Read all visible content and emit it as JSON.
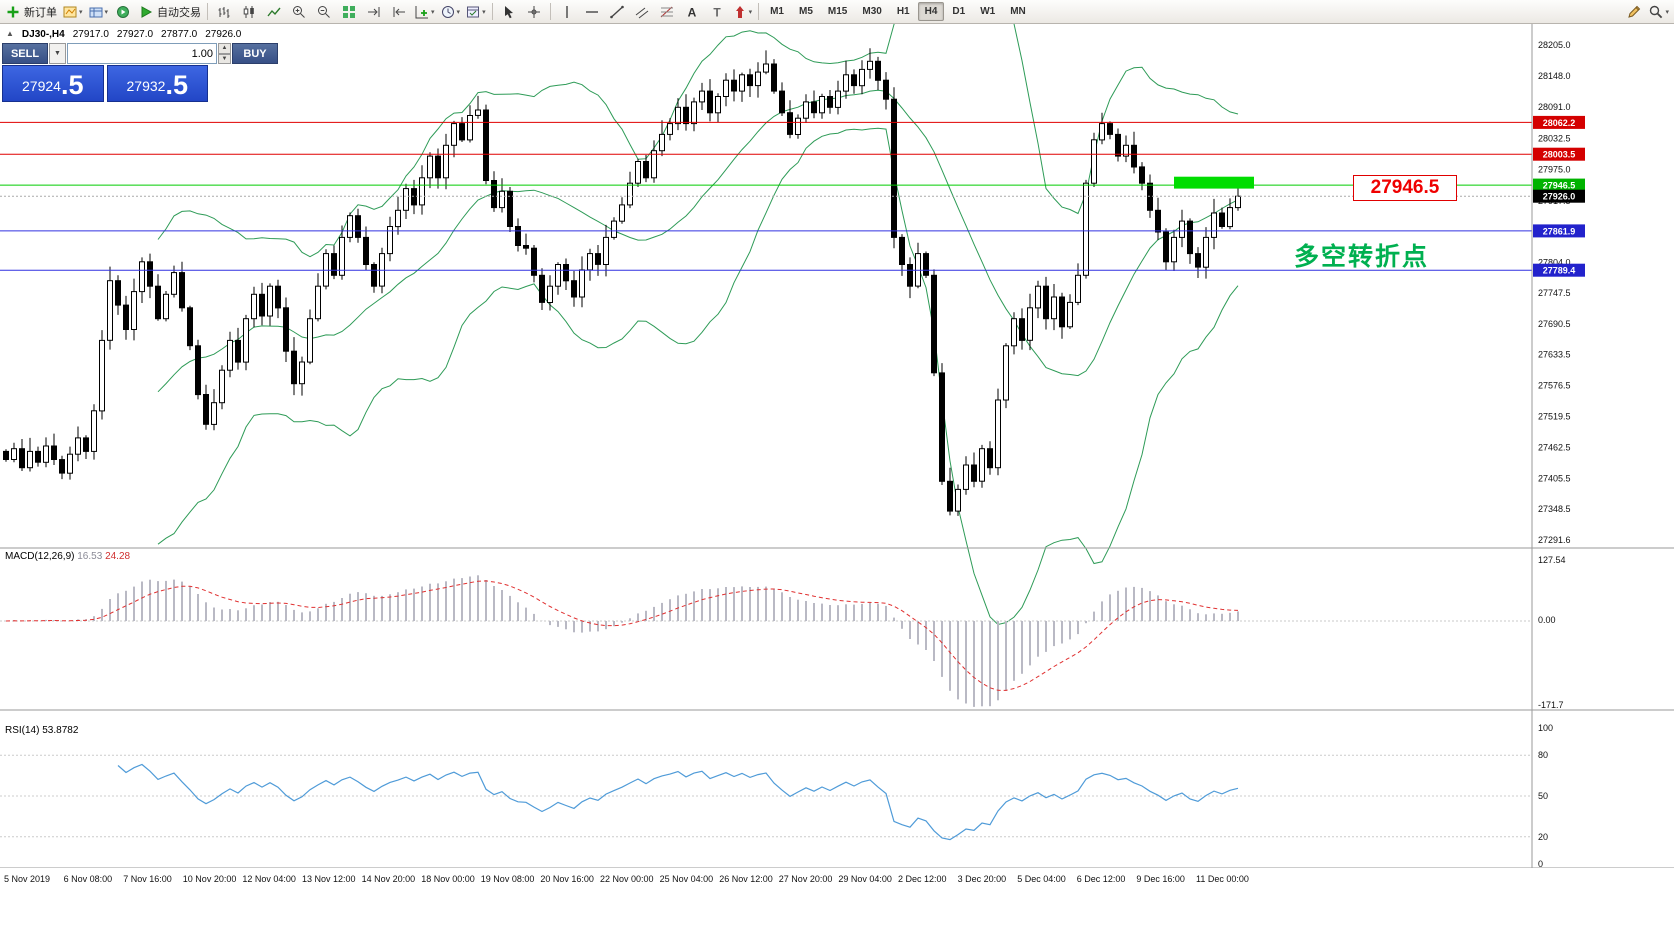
{
  "toolbar": {
    "new_order": "新订单",
    "auto_trading": "自动交易",
    "timeframes": [
      "M1",
      "M5",
      "M15",
      "M30",
      "H1",
      "H4",
      "D1",
      "W1",
      "MN"
    ],
    "active_timeframe": "H4"
  },
  "trade_panel": {
    "sell_label": "SELL",
    "buy_label": "BUY",
    "volume": "1.00",
    "sell_price_main": "27924",
    "sell_price_frac": ".5",
    "buy_price_main": "27932",
    "buy_price_frac": ".5"
  },
  "chart": {
    "symbol_period": "DJ30-,H4",
    "open": "27917.0",
    "high": "27927.0",
    "low": "27877.0",
    "close": "27926.0"
  },
  "price_axis": {
    "max": 28205.0,
    "min": 27291.6,
    "labels": [
      "28205.0",
      "28148.0",
      "28091.0",
      "28032.5",
      "27975.0",
      "27917.5",
      "27860.5",
      "27804.0",
      "27747.5",
      "27690.5",
      "27633.5",
      "27576.5",
      "27519.5",
      "27462.5",
      "27405.5",
      "27348.5",
      "27291.6"
    ]
  },
  "levels": [
    {
      "price": 28062.2,
      "label": "28062.2",
      "color": "#d40000",
      "style": "solid",
      "line_color": "#e00000"
    },
    {
      "price": 28003.5,
      "label": "28003.5",
      "color": "#d40000",
      "style": "solid",
      "line_color": "#e00000"
    },
    {
      "price": 27946.5,
      "label": "27946.5",
      "color": "#00b300",
      "style": "solid",
      "line_color": "#00cc00"
    },
    {
      "price": 27926.0,
      "label": "27926.0",
      "color": "#000000",
      "style": "dotted",
      "line_color": "#aaaaaa"
    },
    {
      "price": 27861.9,
      "label": "27861.9",
      "color": "#2222cc",
      "style": "solid",
      "line_color": "#3030e0"
    },
    {
      "price": 27789.4,
      "label": "27789.4",
      "color": "#2222cc",
      "style": "solid",
      "line_color": "#3030e0"
    }
  ],
  "annotations": {
    "price_label": "27946.5",
    "turning_point": "多空转折点",
    "highlight_rect": {
      "i_start": 146,
      "i_end": 156,
      "price_top": 27962,
      "price_bottom": 27940,
      "color": "#00dd00"
    }
  },
  "macd": {
    "label": "MACD(12,26,9)",
    "value_main": "16.53",
    "value_signal": "24.28",
    "axis": [
      "127.54",
      "0.00",
      "-171.7"
    ]
  },
  "rsi": {
    "label": "RSI(14)",
    "value": "53.8782",
    "axis": [
      "100",
      "80",
      "50",
      "20",
      "0"
    ],
    "levels": [
      80,
      50,
      20
    ]
  },
  "time_axis": [
    "5 Nov 2019",
    "6 Nov 08:00",
    "7 Nov 16:00",
    "10 Nov 20:00",
    "12 Nov 04:00",
    "13 Nov 12:00",
    "14 Nov 20:00",
    "18 Nov 00:00",
    "19 Nov 08:00",
    "20 Nov 16:00",
    "22 Nov 00:00",
    "25 Nov 04:00",
    "26 Nov 12:00",
    "27 Nov 20:00",
    "29 Nov 04:00",
    "2 Dec 12:00",
    "3 Dec 20:00",
    "5 Dec 04:00",
    "6 Dec 12:00",
    "9 Dec 16:00",
    "11 Dec 00:00"
  ],
  "chart_data": {
    "type": "candlestick",
    "symbol": "DJ30-",
    "timeframe": "H4",
    "title": "DJ30-,H4",
    "ylim": [
      27291.6,
      28205.0
    ],
    "overlays": [
      "Bollinger Bands(20,2) green"
    ],
    "indicators": {
      "macd": {
        "fast": 12,
        "slow": 26,
        "signal": 9,
        "current_main": 16.53,
        "current_signal": 24.28,
        "axis_range": [
          -171.7,
          127.54
        ]
      },
      "rsi": {
        "period": 14,
        "current": 53.8782,
        "axis_range": [
          0,
          100
        ]
      }
    },
    "current_ohlc": {
      "open": 27917.0,
      "high": 27927.0,
      "low": 27877.0,
      "close": 27926.0
    },
    "first_open": 27455,
    "closes": [
      27440,
      27460,
      27425,
      27455,
      27435,
      27465,
      27440,
      27415,
      27450,
      27480,
      27455,
      27530,
      27660,
      27770,
      27725,
      27680,
      27750,
      27805,
      27760,
      27700,
      27745,
      27785,
      27720,
      27650,
      27560,
      27505,
      27545,
      27605,
      27660,
      27620,
      27700,
      27745,
      27705,
      27760,
      27720,
      27640,
      27580,
      27620,
      27700,
      27760,
      27820,
      27780,
      27850,
      27890,
      27850,
      27800,
      27760,
      27820,
      27870,
      27900,
      27940,
      27910,
      27960,
      28000,
      27960,
      28020,
      28060,
      28030,
      28075,
      28085,
      27955,
      27905,
      27935,
      27870,
      27835,
      27830,
      27780,
      27730,
      27760,
      27800,
      27770,
      27740,
      27790,
      27820,
      27800,
      27850,
      27880,
      27910,
      27950,
      27990,
      27960,
      28010,
      28040,
      28060,
      28090,
      28060,
      28100,
      28120,
      28080,
      28110,
      28140,
      28120,
      28150,
      28130,
      28155,
      28170,
      28120,
      28080,
      28040,
      28070,
      28100,
      28080,
      28110,
      28090,
      28120,
      28150,
      28130,
      28160,
      28175,
      28140,
      28105,
      27850,
      27800,
      27760,
      27820,
      27780,
      27600,
      27400,
      27345,
      27385,
      27430,
      27400,
      27460,
      27425,
      27550,
      27650,
      27700,
      27660,
      27720,
      27760,
      27700,
      27740,
      27685,
      27730,
      27780,
      27950,
      28030,
      28060,
      28040,
      28000,
      28020,
      27980,
      27950,
      27900,
      27860,
      27805,
      27850,
      27880,
      27820,
      27795,
      27850,
      27895,
      27870,
      27905,
      27926
    ]
  }
}
